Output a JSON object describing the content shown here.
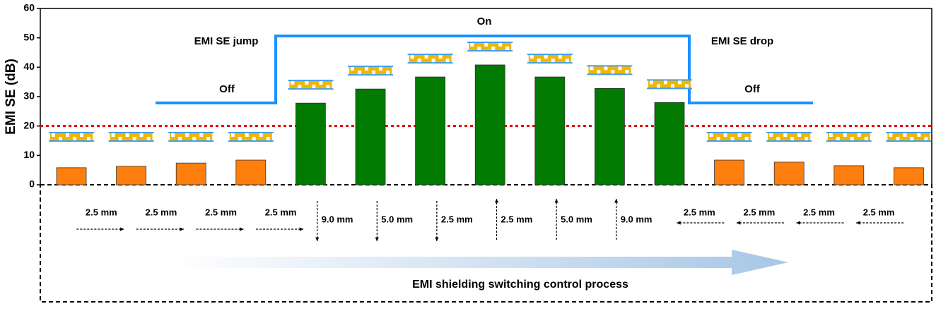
{
  "chart_data": {
    "type": "bar",
    "y_label": "EMI SE (dB)",
    "categories": [
      null,
      null,
      null,
      null,
      null,
      null,
      null,
      null,
      null,
      null,
      null,
      null,
      null,
      null,
      null
    ],
    "values": [
      5.8,
      6.3,
      7.4,
      8.4,
      27.8,
      32.6,
      36.7,
      40.8,
      36.7,
      32.8,
      28,
      8.4,
      7.7,
      6.5,
      5.8
    ],
    "colors": [
      "#ff7f0e",
      "#ff7f0e",
      "#ff7f0e",
      "#ff7f0e",
      "#007a00",
      "#007a00",
      "#007a00",
      "#007a00",
      "#007a00",
      "#007a00",
      "#007a00",
      "#ff7f0e",
      "#ff7f0e",
      "#ff7f0e",
      "#ff7f0e"
    ],
    "ylim": [
      0,
      60
    ],
    "yticks": [
      0,
      10,
      20,
      30,
      40,
      50,
      60
    ],
    "threshold": 20,
    "threshold_color": "#e00000",
    "annotations": {
      "on": "On",
      "off_left": "Off",
      "off_right": "Off",
      "jump": "EMI SE jump",
      "drop": "EMI SE drop"
    },
    "steps": [
      {
        "label": "2.5 mm",
        "direction": "right"
      },
      {
        "label": "2.5 mm",
        "direction": "right"
      },
      {
        "label": "2.5 mm",
        "direction": "right"
      },
      {
        "label": "2.5 mm",
        "direction": "right"
      },
      {
        "label": "9.0 mm",
        "direction": "down"
      },
      {
        "label": "5.0 mm",
        "direction": "down"
      },
      {
        "label": "2.5 mm",
        "direction": "down"
      },
      {
        "label": "2.5 mm",
        "direction": "up"
      },
      {
        "label": "5.0 mm",
        "direction": "up"
      },
      {
        "label": "9.0 mm",
        "direction": "up"
      },
      {
        "label": "2.5 mm",
        "direction": "left"
      },
      {
        "label": "2.5 mm",
        "direction": "left"
      },
      {
        "label": "2.5 mm",
        "direction": "left"
      },
      {
        "label": "2.5 mm",
        "direction": "left"
      }
    ],
    "process_label": "EMI shielding switching control process"
  }
}
